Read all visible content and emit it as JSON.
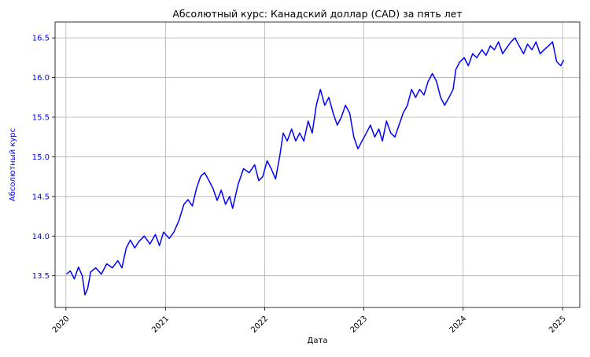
{
  "chart_data": {
    "type": "line",
    "title": "Абсолютный курс: Канадский доллар (CAD) за пять лет",
    "xlabel": "Дата",
    "ylabel": "Абсолютный курс",
    "xlim": [
      "2019-11-22",
      "2025-03-05"
    ],
    "ylim": [
      13.1,
      16.7
    ],
    "x_ticks": [
      "2020",
      "2021",
      "2022",
      "2023",
      "2024",
      "2025"
    ],
    "y_ticks": [
      "13.5",
      "14.0",
      "14.5",
      "15.0",
      "15.5",
      "16.0",
      "16.5"
    ],
    "grid": true,
    "line_color": "#0000ff",
    "ylabel_color": "#0000ff",
    "series": [
      {
        "values": [
          [
            "2020-01-03",
            13.52
          ],
          [
            "2020-01-17",
            13.56
          ],
          [
            "2020-02-01",
            13.46
          ],
          [
            "2020-02-16",
            13.61
          ],
          [
            "2020-03-01",
            13.5
          ],
          [
            "2020-03-11",
            13.26
          ],
          [
            "2020-03-21",
            13.34
          ],
          [
            "2020-04-01",
            13.55
          ],
          [
            "2020-04-20",
            13.6
          ],
          [
            "2020-05-10",
            13.52
          ],
          [
            "2020-05-30",
            13.65
          ],
          [
            "2020-06-20",
            13.6
          ],
          [
            "2020-07-10",
            13.69
          ],
          [
            "2020-07-25",
            13.6
          ],
          [
            "2020-08-10",
            13.85
          ],
          [
            "2020-08-25",
            13.95
          ],
          [
            "2020-09-10",
            13.85
          ],
          [
            "2020-09-25",
            13.93
          ],
          [
            "2020-10-15",
            14.0
          ],
          [
            "2020-11-05",
            13.9
          ],
          [
            "2020-11-25",
            14.02
          ],
          [
            "2020-12-10",
            13.88
          ],
          [
            "2020-12-25",
            14.05
          ],
          [
            "2021-01-15",
            13.97
          ],
          [
            "2021-02-01",
            14.05
          ],
          [
            "2021-02-20",
            14.2
          ],
          [
            "2021-03-10",
            14.4
          ],
          [
            "2021-03-25",
            14.46
          ],
          [
            "2021-04-10",
            14.38
          ],
          [
            "2021-04-25",
            14.6
          ],
          [
            "2021-05-10",
            14.75
          ],
          [
            "2021-05-25",
            14.8
          ],
          [
            "2021-06-10",
            14.7
          ],
          [
            "2021-06-25",
            14.6
          ],
          [
            "2021-07-10",
            14.45
          ],
          [
            "2021-07-25",
            14.58
          ],
          [
            "2021-08-10",
            14.4
          ],
          [
            "2021-08-25",
            14.5
          ],
          [
            "2021-09-05",
            14.35
          ],
          [
            "2021-09-25",
            14.65
          ],
          [
            "2021-10-15",
            14.85
          ],
          [
            "2021-11-05",
            14.8
          ],
          [
            "2021-11-25",
            14.9
          ],
          [
            "2021-12-10",
            14.7
          ],
          [
            "2021-12-25",
            14.75
          ],
          [
            "2022-01-10",
            14.95
          ],
          [
            "2022-01-25",
            14.85
          ],
          [
            "2022-02-10",
            14.72
          ],
          [
            "2022-02-25",
            15.0
          ],
          [
            "2022-03-10",
            15.3
          ],
          [
            "2022-03-25",
            15.2
          ],
          [
            "2022-04-10",
            15.35
          ],
          [
            "2022-04-25",
            15.2
          ],
          [
            "2022-05-10",
            15.3
          ],
          [
            "2022-05-25",
            15.2
          ],
          [
            "2022-06-10",
            15.45
          ],
          [
            "2022-06-25",
            15.3
          ],
          [
            "2022-07-10",
            15.65
          ],
          [
            "2022-07-25",
            15.85
          ],
          [
            "2022-08-10",
            15.65
          ],
          [
            "2022-08-25",
            15.75
          ],
          [
            "2022-09-10",
            15.55
          ],
          [
            "2022-09-25",
            15.4
          ],
          [
            "2022-10-10",
            15.5
          ],
          [
            "2022-10-25",
            15.65
          ],
          [
            "2022-11-10",
            15.55
          ],
          [
            "2022-11-25",
            15.25
          ],
          [
            "2022-12-10",
            15.1
          ],
          [
            "2022-12-25",
            15.2
          ],
          [
            "2023-01-10",
            15.3
          ],
          [
            "2023-01-25",
            15.4
          ],
          [
            "2023-02-10",
            15.25
          ],
          [
            "2023-02-25",
            15.35
          ],
          [
            "2023-03-10",
            15.2
          ],
          [
            "2023-03-25",
            15.45
          ],
          [
            "2023-04-10",
            15.3
          ],
          [
            "2023-04-25",
            15.25
          ],
          [
            "2023-05-10",
            15.4
          ],
          [
            "2023-05-25",
            15.55
          ],
          [
            "2023-06-10",
            15.65
          ],
          [
            "2023-06-25",
            15.85
          ],
          [
            "2023-07-10",
            15.75
          ],
          [
            "2023-07-25",
            15.85
          ],
          [
            "2023-08-10",
            15.78
          ],
          [
            "2023-08-25",
            15.95
          ],
          [
            "2023-09-10",
            16.05
          ],
          [
            "2023-09-25",
            15.95
          ],
          [
            "2023-10-10",
            15.75
          ],
          [
            "2023-10-25",
            15.65
          ],
          [
            "2023-11-10",
            15.75
          ],
          [
            "2023-11-25",
            15.85
          ],
          [
            "2023-12-05",
            16.1
          ],
          [
            "2023-12-20",
            16.2
          ],
          [
            "2024-01-05",
            16.25
          ],
          [
            "2024-01-20",
            16.15
          ],
          [
            "2024-02-05",
            16.3
          ],
          [
            "2024-02-20",
            16.25
          ],
          [
            "2024-03-10",
            16.35
          ],
          [
            "2024-03-25",
            16.28
          ],
          [
            "2024-04-10",
            16.4
          ],
          [
            "2024-04-25",
            16.35
          ],
          [
            "2024-05-10",
            16.45
          ],
          [
            "2024-05-25",
            16.3
          ],
          [
            "2024-06-10",
            16.38
          ],
          [
            "2024-06-25",
            16.45
          ],
          [
            "2024-07-10",
            16.5
          ],
          [
            "2024-07-25",
            16.4
          ],
          [
            "2024-08-10",
            16.3
          ],
          [
            "2024-08-25",
            16.42
          ],
          [
            "2024-09-10",
            16.35
          ],
          [
            "2024-09-25",
            16.45
          ],
          [
            "2024-10-10",
            16.3
          ],
          [
            "2024-10-25",
            16.35
          ],
          [
            "2024-11-10",
            16.4
          ],
          [
            "2024-11-25",
            16.45
          ],
          [
            "2024-12-10",
            16.2
          ],
          [
            "2024-12-25",
            16.15
          ],
          [
            "2025-01-05",
            16.22
          ]
        ]
      }
    ]
  }
}
